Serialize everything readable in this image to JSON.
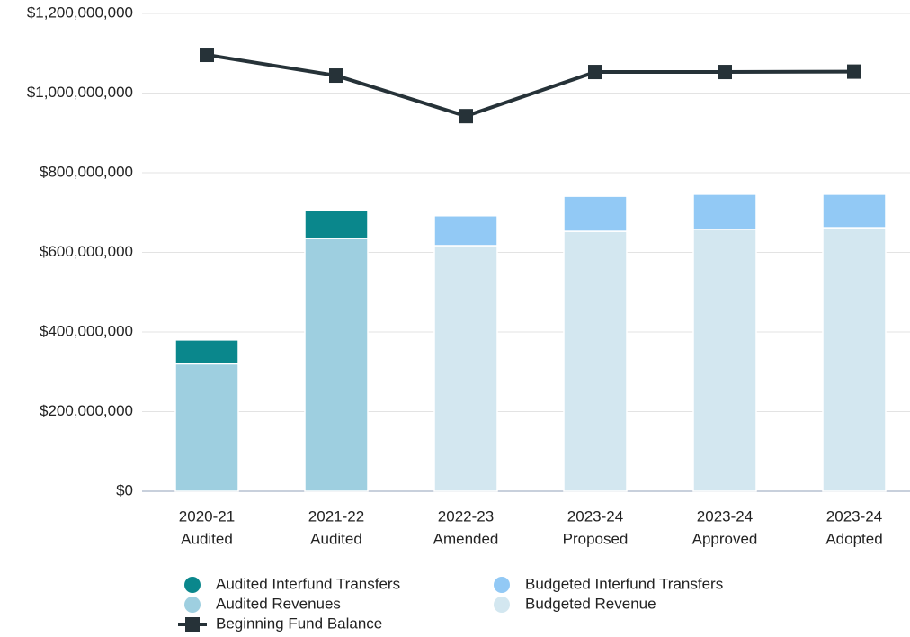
{
  "chart_data": {
    "type": "bar",
    "categories": [
      [
        "2020-21",
        "Audited"
      ],
      [
        "2021-22",
        "Audited"
      ],
      [
        "2022-23",
        "Amended"
      ],
      [
        "2023-24",
        "Proposed"
      ],
      [
        "2023-24",
        "Approved"
      ],
      [
        "2023-24",
        "Adopted"
      ]
    ],
    "series": [
      {
        "name": "Audited Revenues",
        "color": "#9ecfe0",
        "values": [
          320000000,
          635000000,
          null,
          null,
          null,
          null
        ]
      },
      {
        "name": "Audited Interfund Transfers",
        "color": "#0a878c",
        "values": [
          60000000,
          70000000,
          null,
          null,
          null,
          null
        ]
      },
      {
        "name": "Budgeted Revenue",
        "color": "#d3e7f0",
        "values": [
          null,
          null,
          617000000,
          653000000,
          658000000,
          662000000
        ]
      },
      {
        "name": "Budgeted Interfund Transfers",
        "color": "#92c9f5",
        "values": [
          null,
          null,
          75000000,
          88000000,
          88000000,
          84000000
        ]
      },
      {
        "name": "Beginning Fund Balance",
        "color": "#263238",
        "type": "line",
        "values": [
          1096000000,
          1044000000,
          942000000,
          1053000000,
          1053000000,
          1054000000
        ]
      }
    ],
    "ylim": [
      0,
      1200000000
    ],
    "yticks": [
      {
        "value": 0,
        "label": "$0"
      },
      {
        "value": 200000000,
        "label": "$200,000,000"
      },
      {
        "value": 400000000,
        "label": "$400,000,000"
      },
      {
        "value": 600000000,
        "label": "$600,000,000"
      },
      {
        "value": 800000000,
        "label": "$800,000,000"
      },
      {
        "value": 1000000000,
        "label": "$1,000,000,000"
      },
      {
        "value": 1200000000,
        "label": "$1,200,000,000"
      }
    ],
    "grid": true
  }
}
